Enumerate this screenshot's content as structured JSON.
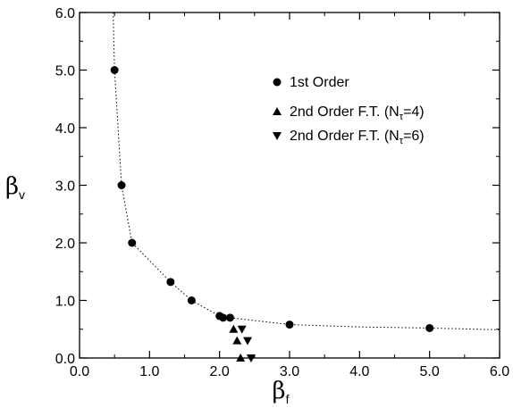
{
  "chart_data": {
    "type": "scatter",
    "xlabel": {
      "main": "β",
      "sub": "f"
    },
    "ylabel": {
      "main": "β",
      "sub": "v"
    },
    "xlim": [
      0,
      6
    ],
    "ylim": [
      0,
      6
    ],
    "x_ticks": [
      {
        "value": 0,
        "label": "0.0"
      },
      {
        "value": 1,
        "label": "1.0"
      },
      {
        "value": 2,
        "label": "2.0"
      },
      {
        "value": 3,
        "label": "3.0"
      },
      {
        "value": 4,
        "label": "4.0"
      },
      {
        "value": 5,
        "label": "5.0"
      },
      {
        "value": 6,
        "label": "6.0"
      }
    ],
    "y_ticks": [
      {
        "value": 0,
        "label": "0.0"
      },
      {
        "value": 1,
        "label": "1.0"
      },
      {
        "value": 2,
        "label": "2.0"
      },
      {
        "value": 3,
        "label": "3.0"
      },
      {
        "value": 4,
        "label": "4.0"
      },
      {
        "value": 5,
        "label": "5.0"
      },
      {
        "value": 6,
        "label": "6.0"
      }
    ],
    "grid": false,
    "legend_position": "top-right",
    "series": [
      {
        "name": "1st Order",
        "marker": "circle",
        "points": [
          {
            "x": 0.5,
            "y": 5.0
          },
          {
            "x": 0.6,
            "y": 3.0
          },
          {
            "x": 0.75,
            "y": 2.0
          },
          {
            "x": 1.3,
            "y": 1.32
          },
          {
            "x": 1.6,
            "y": 1.0
          },
          {
            "x": 2.0,
            "y": 0.73
          },
          {
            "x": 2.05,
            "y": 0.7
          },
          {
            "x": 2.15,
            "y": 0.7
          },
          {
            "x": 3.0,
            "y": 0.58
          },
          {
            "x": 5.0,
            "y": 0.52
          }
        ]
      },
      {
        "name": "2nd Order F.T.  (N",
        "name_sub": "τ",
        "name_suffix": "=4)",
        "marker": "triangle-up",
        "points": [
          {
            "x": 2.2,
            "y": 0.5
          },
          {
            "x": 2.25,
            "y": 0.3
          },
          {
            "x": 2.3,
            "y": 0.0
          }
        ]
      },
      {
        "name": "2nd Order F.T.  (N",
        "name_sub": "τ",
        "name_suffix": "=6)",
        "marker": "triangle-down",
        "points": [
          {
            "x": 2.32,
            "y": 0.5
          },
          {
            "x": 2.4,
            "y": 0.3
          },
          {
            "x": 2.45,
            "y": 0.0
          }
        ]
      }
    ],
    "fit_curve": {
      "style": "dotted",
      "points": [
        {
          "x": 0.48,
          "y": 6.0
        },
        {
          "x": 0.5,
          "y": 5.0
        },
        {
          "x": 0.6,
          "y": 3.0
        },
        {
          "x": 0.75,
          "y": 2.0
        },
        {
          "x": 1.3,
          "y": 1.32
        },
        {
          "x": 1.6,
          "y": 1.0
        },
        {
          "x": 2.0,
          "y": 0.73
        },
        {
          "x": 2.15,
          "y": 0.7
        },
        {
          "x": 3.0,
          "y": 0.58
        },
        {
          "x": 4.0,
          "y": 0.54
        },
        {
          "x": 5.0,
          "y": 0.52
        },
        {
          "x": 6.0,
          "y": 0.49
        }
      ]
    }
  }
}
